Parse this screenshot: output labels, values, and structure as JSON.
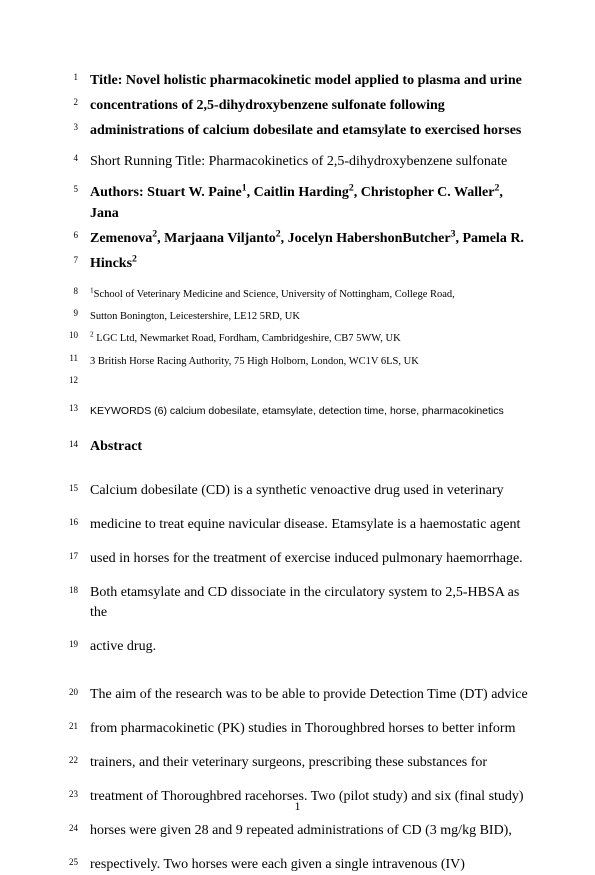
{
  "title": {
    "l1": "Title: Novel holistic pharmacokinetic model applied to plasma and urine",
    "l2": "concentrations of 2,5-dihydroxybenzene sulfonate following",
    "l3": "administrations of calcium dobesilate and etamsylate to exercised horses"
  },
  "running_title": "Short Running Title: Pharmacokinetics of 2,5-dihydroxybenzene sulfonate",
  "authors": {
    "l1_pre": "Authors: Stuart W. Paine",
    "l1_mid1": ", Caitlin Harding",
    "l1_mid2": ", Christopher C. Waller",
    "l1_tail": ", Jana",
    "l2_a": "Zemenova",
    "l2_b": ", Marjaana Viljanto",
    "l2_c": ", Jocelyn HabershonButcher",
    "l2_d": ", Pamela R.",
    "l3": "Hincks"
  },
  "sup": {
    "one": "1",
    "two": "2",
    "three": "3"
  },
  "affiliations": {
    "a1_l1": "School of Veterinary Medicine and Science, University of Nottingham, College Road,",
    "a1_l2": "Sutton Bonington, Leicestershire, LE12 5RD, UK",
    "a2": " LGC Ltd, Newmarket Road, Fordham, Cambridgeshire, CB7 5WW, UK",
    "a3": "3 British Horse Racing Authority, 75 High Holborn, London, WC1V 6LS, UK"
  },
  "keywords": "KEYWORDS (6) calcium dobesilate, etamsylate, detection time, horse, pharmacokinetics",
  "abstract_heading": "Abstract",
  "body": {
    "p1": {
      "l15": "Calcium dobesilate (CD) is a synthetic venoactive drug used in veterinary",
      "l16": "medicine to treat equine navicular disease. Etamsylate is a haemostatic agent",
      "l17": "used in horses for the treatment of exercise induced pulmonary haemorrhage.",
      "l18": "Both etamsylate and CD dissociate in the circulatory system to 2,5-HBSA as the",
      "l19": "active drug."
    },
    "p2": {
      "l20": "The aim of the research was to be able to provide Detection Time (DT) advice",
      "l21": "from pharmacokinetic (PK) studies in Thoroughbred horses to better inform",
      "l22": "trainers, and their veterinary surgeons, prescribing these substances for",
      "l23": "treatment of Thoroughbred racehorses. Two (pilot study) and six (final study)",
      "l24": "horses were given 28 and 9 repeated administrations of CD (3 mg/kg BID),",
      "l25": "respectively. Two horses were each given a single intravenous (IV)"
    }
  },
  "linenos": {
    "n1": "1",
    "n2": "2",
    "n3": "3",
    "n4": "4",
    "n5": "5",
    "n6": "6",
    "n7": "7",
    "n8": "8",
    "n9": "9",
    "n10": "10",
    "n11": "11",
    "n12": "12",
    "n13": "13",
    "n14": "14",
    "n15": "15",
    "n16": "16",
    "n17": "17",
    "n18": "18",
    "n19": "19",
    "n20": "20",
    "n21": "21",
    "n22": "22",
    "n23": "23",
    "n24": "24",
    "n25": "25"
  },
  "page_number": "1"
}
